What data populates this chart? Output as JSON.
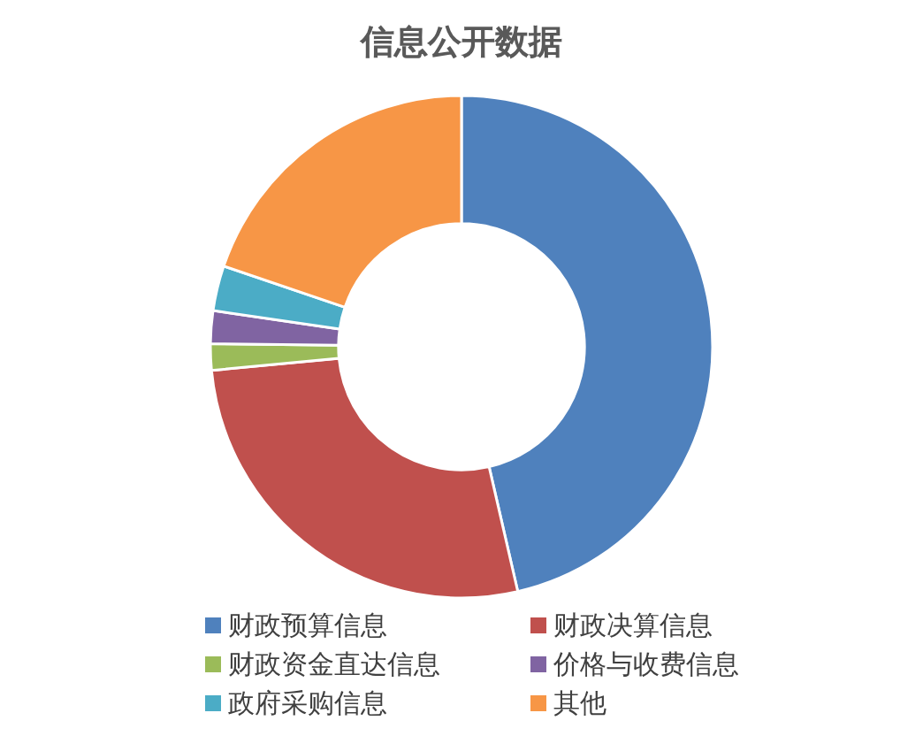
{
  "chart_data": {
    "type": "donut",
    "title": "信息公开数据",
    "categories": [
      "财政预算信息",
      "财政决算信息",
      "财政资金直达信息",
      "价格与收费信息",
      "政府采购信息",
      "其他"
    ],
    "values": [
      46.4,
      27.1,
      1.7,
      2.1,
      2.9,
      19.8
    ],
    "colors": [
      "#4f81bd",
      "#c0504d",
      "#9bbb59",
      "#8064a2",
      "#4bacc6",
      "#f79646"
    ],
    "legend": "bottom"
  }
}
